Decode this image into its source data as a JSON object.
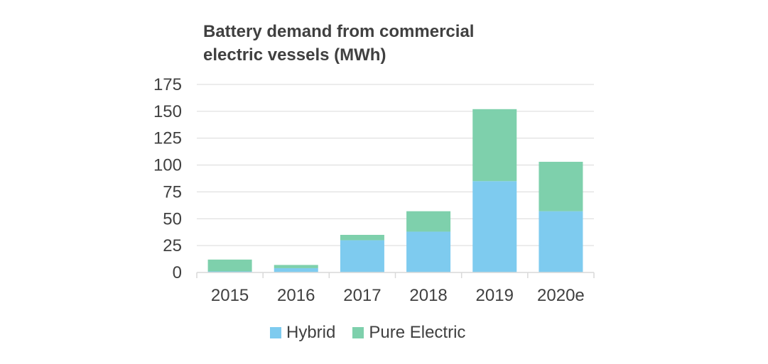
{
  "chart_data": {
    "type": "bar",
    "stacked": true,
    "title": "Battery demand from commercial electric vessels (MWh)",
    "title_lines": [
      "Battery demand from commercial",
      "electric vessels (MWh)"
    ],
    "categories": [
      "2015",
      "2016",
      "2017",
      "2018",
      "2019",
      "2020e"
    ],
    "series": [
      {
        "name": "Hybrid",
        "color": "#7ecbef",
        "values": [
          1,
          4,
          30,
          38,
          85,
          57
        ]
      },
      {
        "name": "Pure Electric",
        "color": "#7ed0ac",
        "values": [
          11,
          3,
          5,
          19,
          67,
          46
        ]
      }
    ],
    "xlabel": "",
    "ylabel": "",
    "ylim": [
      0,
      175
    ],
    "yticks": [
      0,
      25,
      50,
      75,
      100,
      125,
      150,
      175
    ],
    "grid": true,
    "legend_position": "bottom"
  }
}
